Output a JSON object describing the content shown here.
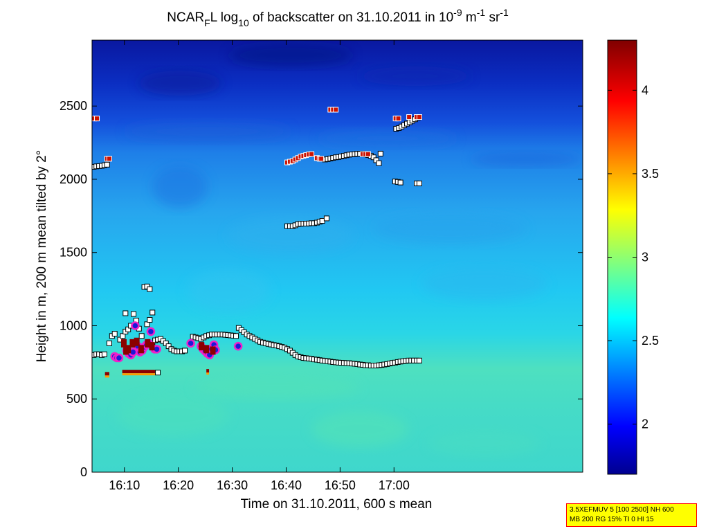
{
  "chart_data": {
    "type": "heatmap",
    "title": {
      "prefix": "NCAR",
      "sub_f": "F",
      "mid": "L log",
      "sub_10": "10",
      "rest": " of backscatter on 31.10.2011 in 10",
      "sup_exp": "-9",
      "unit_m": " m",
      "sup_m": "-1",
      "unit_sr": " sr",
      "sup_sr": "-1"
    },
    "xlabel": "Time on 31.10.2011, 600 s mean",
    "ylabel": "Height in m, 200 m mean tilted by 2°",
    "x_range_minutes": [
      964,
      1055
    ],
    "ylim": [
      0,
      2950
    ],
    "x_ticks": [
      {
        "label": "16:10",
        "minute": 970
      },
      {
        "label": "16:20",
        "minute": 980
      },
      {
        "label": "16:30",
        "minute": 990
      },
      {
        "label": "16:40",
        "minute": 1000
      },
      {
        "label": "16:50",
        "minute": 1010
      },
      {
        "label": "17:00",
        "minute": 1020
      }
    ],
    "y_ticks": [
      0,
      500,
      1000,
      1500,
      2000,
      2500
    ],
    "colorbar": {
      "range": [
        1.7,
        4.3
      ],
      "ticks": [
        "2",
        "2.5",
        "3",
        "3.5",
        "4"
      ],
      "tick_values": [
        2,
        2.5,
        3,
        3.5,
        4
      ],
      "colormap": "jet"
    },
    "marker_series": [
      {
        "name": "upper layer (white squares)",
        "style": "white-square",
        "points": [
          [
            964.3,
            2085
          ],
          [
            964.8,
            2088
          ],
          [
            965.3,
            2090
          ],
          [
            965.8,
            2092
          ],
          [
            966.3,
            2096
          ],
          [
            966.8,
            2100
          ],
          [
            1000.2,
            1680
          ],
          [
            1000.7,
            1680
          ],
          [
            1001.2,
            1680
          ],
          [
            1001.7,
            1686
          ],
          [
            1002.2,
            1694
          ],
          [
            1002.7,
            1696
          ],
          [
            1003.2,
            1697
          ],
          [
            1003.7,
            1697
          ],
          [
            1004.2,
            1698
          ],
          [
            1004.7,
            1700
          ],
          [
            1005.2,
            1700
          ],
          [
            1005.7,
            1704
          ],
          [
            1006.2,
            1710
          ],
          [
            1006.7,
            1716
          ],
          [
            1007.5,
            1733
          ],
          [
            1007.2,
            2135
          ],
          [
            1007.7,
            2138
          ],
          [
            1008.2,
            2142
          ],
          [
            1008.7,
            2146
          ],
          [
            1009.2,
            2150
          ],
          [
            1009.7,
            2152
          ],
          [
            1010.2,
            2156
          ],
          [
            1010.7,
            2160
          ],
          [
            1011.2,
            2164
          ],
          [
            1011.7,
            2168
          ],
          [
            1012.2,
            2170
          ],
          [
            1012.7,
            2172
          ],
          [
            1013.2,
            2174
          ],
          [
            1013.7,
            2174
          ],
          [
            1014.2,
            2174
          ],
          [
            1014.7,
            2170
          ],
          [
            1015.2,
            2166
          ],
          [
            1015.7,
            2160
          ],
          [
            1016.2,
            2150
          ],
          [
            1016.7,
            2130
          ],
          [
            1017.2,
            2110
          ],
          [
            1017.5,
            2175
          ],
          [
            1020.2,
            1985
          ],
          [
            1020.7,
            1982
          ],
          [
            1021.2,
            1978
          ],
          [
            1024.2,
            1972
          ],
          [
            1024.7,
            1972
          ],
          [
            1020.4,
            2345
          ],
          [
            1020.9,
            2350
          ],
          [
            1021.4,
            2360
          ],
          [
            1021.9,
            2370
          ],
          [
            1022.4,
            2380
          ],
          [
            1022.9,
            2390
          ],
          [
            1023.4,
            2400
          ],
          [
            1023.9,
            2410
          ],
          [
            1024.4,
            2420
          ],
          [
            973.7,
            1265
          ],
          [
            974.2,
            1268
          ],
          [
            974.7,
            1250
          ]
        ]
      },
      {
        "name": "cloud base (white squares)",
        "style": "white-square",
        "points": [
          [
            964.3,
            800
          ],
          [
            964.8,
            805
          ],
          [
            965.3,
            805
          ],
          [
            965.8,
            800
          ],
          [
            966.3,
            805
          ],
          [
            975.7,
            900
          ],
          [
            976.2,
            905
          ],
          [
            976.7,
            910
          ],
          [
            977.2,
            895
          ],
          [
            977.7,
            880
          ],
          [
            978.2,
            860
          ],
          [
            978.7,
            840
          ],
          [
            979.2,
            830
          ],
          [
            979.7,
            825
          ],
          [
            980.2,
            825
          ],
          [
            980.7,
            825
          ],
          [
            981.2,
            830
          ],
          [
            982.7,
            925
          ],
          [
            983.2,
            920
          ],
          [
            983.7,
            915
          ],
          [
            984.2,
            910
          ],
          [
            984.7,
            920
          ],
          [
            985.2,
            930
          ],
          [
            985.7,
            935
          ],
          [
            986.2,
            940
          ],
          [
            986.7,
            940
          ],
          [
            987.2,
            940
          ],
          [
            987.7,
            940
          ],
          [
            988.2,
            940
          ],
          [
            988.7,
            938
          ],
          [
            989.2,
            936
          ],
          [
            989.7,
            934
          ],
          [
            990.2,
            932
          ],
          [
            990.7,
            930
          ],
          [
            991.2,
            985
          ],
          [
            991.7,
            970
          ],
          [
            992.2,
            955
          ],
          [
            992.7,
            940
          ],
          [
            993.2,
            930
          ],
          [
            993.7,
            920
          ],
          [
            994.2,
            910
          ],
          [
            994.7,
            900
          ],
          [
            995.2,
            890
          ],
          [
            995.7,
            885
          ],
          [
            996.2,
            880
          ],
          [
            996.7,
            876
          ],
          [
            997.2,
            872
          ],
          [
            997.7,
            868
          ],
          [
            998.2,
            865
          ],
          [
            998.7,
            860
          ],
          [
            999.2,
            855
          ],
          [
            999.7,
            850
          ],
          [
            1000.2,
            840
          ],
          [
            1000.7,
            830
          ],
          [
            1001.2,
            815
          ],
          [
            1001.7,
            800
          ],
          [
            1002.2,
            790
          ],
          [
            1002.7,
            785
          ],
          [
            1003.2,
            780
          ],
          [
            1003.7,
            778
          ],
          [
            1004.2,
            776
          ],
          [
            1004.7,
            774
          ],
          [
            1005.2,
            770
          ],
          [
            1005.7,
            768
          ],
          [
            1006.2,
            765
          ],
          [
            1006.7,
            762
          ],
          [
            1007.2,
            760
          ],
          [
            1007.7,
            758
          ],
          [
            1008.2,
            755
          ],
          [
            1008.7,
            752
          ],
          [
            1009.2,
            750
          ],
          [
            1009.7,
            748
          ],
          [
            1010.2,
            747
          ],
          [
            1010.7,
            746
          ],
          [
            1011.2,
            745
          ],
          [
            1011.7,
            744
          ],
          [
            1012.2,
            742
          ],
          [
            1012.7,
            740
          ],
          [
            1013.2,
            738
          ],
          [
            1013.7,
            735
          ],
          [
            1014.2,
            733
          ],
          [
            1014.7,
            730
          ],
          [
            1015.2,
            730
          ],
          [
            1015.7,
            728
          ],
          [
            1016.2,
            728
          ],
          [
            1016.7,
            728
          ],
          [
            1017.2,
            730
          ],
          [
            1017.7,
            732
          ],
          [
            1018.2,
            735
          ],
          [
            1018.7,
            738
          ],
          [
            1019.2,
            742
          ],
          [
            1019.7,
            746
          ],
          [
            1020.2,
            748
          ],
          [
            1020.7,
            752
          ],
          [
            1021.2,
            755
          ],
          [
            1021.7,
            758
          ],
          [
            1022.2,
            760
          ],
          [
            1022.7,
            762
          ],
          [
            1023.2,
            762
          ],
          [
            1023.7,
            762
          ],
          [
            1024.2,
            762
          ],
          [
            1024.7,
            762
          ],
          [
            967.2,
            880
          ],
          [
            967.7,
            930
          ],
          [
            968.2,
            945
          ],
          [
            969.2,
            905
          ],
          [
            969.7,
            930
          ],
          [
            970.2,
            960
          ],
          [
            970.7,
            975
          ],
          [
            971.2,
            1000
          ],
          [
            971.7,
            1080
          ],
          [
            972.2,
            1035
          ],
          [
            972.7,
            980
          ],
          [
            973.2,
            930
          ],
          [
            974.2,
            1010
          ],
          [
            974.7,
            1040
          ],
          [
            975.2,
            1090
          ],
          [
            975.2,
            860
          ],
          [
            976.2,
            680
          ],
          [
            970.2,
            1085
          ]
        ]
      },
      {
        "name": "red markers (top layer)",
        "style": "red-square",
        "points": [
          [
            964.4,
            2415
          ],
          [
            964.9,
            2415
          ],
          [
            966.8,
            2140
          ],
          [
            967.2,
            2140
          ],
          [
            1000.2,
            2115
          ],
          [
            1000.7,
            2120
          ],
          [
            1001.2,
            2125
          ],
          [
            1001.7,
            2135
          ],
          [
            1002.2,
            2145
          ],
          [
            1002.7,
            2155
          ],
          [
            1003.2,
            2160
          ],
          [
            1003.7,
            2165
          ],
          [
            1004.2,
            2170
          ],
          [
            1004.7,
            2172
          ],
          [
            1005.7,
            2145
          ],
          [
            1006.2,
            2140
          ],
          [
            1006.5,
            2140
          ],
          [
            1008.2,
            2475
          ],
          [
            1008.7,
            2475
          ],
          [
            1009.2,
            2475
          ],
          [
            1014.2,
            2172
          ],
          [
            1014.7,
            2172
          ],
          [
            1015.2,
            2172
          ],
          [
            1020.3,
            2415
          ],
          [
            1020.8,
            2415
          ],
          [
            1022.8,
            2425
          ],
          [
            1024.2,
            2425
          ],
          [
            1024.7,
            2425
          ]
        ]
      },
      {
        "name": "blue/magenta circles (cloud)",
        "style": "blue-circle",
        "points": [
          [
            968.2,
            790
          ],
          [
            968.6,
            780
          ],
          [
            969.0,
            780
          ],
          [
            970.4,
            830
          ],
          [
            970.8,
            810
          ],
          [
            971.2,
            800
          ],
          [
            971.6,
            820
          ],
          [
            972.0,
            1000
          ],
          [
            972.5,
            860
          ],
          [
            972.9,
            820
          ],
          [
            973.3,
            830
          ],
          [
            973.7,
            855
          ],
          [
            974.1,
            870
          ],
          [
            974.5,
            880
          ],
          [
            974.9,
            960
          ],
          [
            975.6,
            840
          ],
          [
            976.0,
            840
          ],
          [
            982.3,
            880
          ],
          [
            984.2,
            860
          ],
          [
            984.6,
            840
          ],
          [
            985.0,
            825
          ],
          [
            985.4,
            810
          ],
          [
            985.8,
            800
          ],
          [
            986.2,
            840
          ],
          [
            986.6,
            870
          ],
          [
            986.9,
            835
          ],
          [
            991.1,
            860
          ]
        ]
      },
      {
        "name": "dark red/magenta filled cells",
        "style": "darkred-square",
        "points": [
          [
            969.9,
            880
          ],
          [
            970.3,
            830
          ],
          [
            970.7,
            840
          ],
          [
            971.5,
            880
          ],
          [
            972.3,
            890
          ],
          [
            973.1,
            840
          ],
          [
            974.3,
            880
          ],
          [
            975.1,
            860
          ],
          [
            984.3,
            860
          ],
          [
            985.2,
            840
          ],
          [
            986.4,
            830
          ]
        ]
      }
    ],
    "base_layer_bands_minutes_height": [
      {
        "from": 969.6,
        "to": 975.7,
        "height": 680,
        "desc": "dark red / orange band"
      },
      {
        "from": 966.4,
        "to": 967.2,
        "height": 665,
        "desc": "dark red patch"
      },
      {
        "from": 985.2,
        "to": 985.7,
        "height": 685,
        "desc": "dark red patch"
      }
    ]
  },
  "info_box": {
    "line1": "3.5XEFMUV 5 [100 2500] NH 600",
    "line2": "MB 200 RG 15% TI 0 HI 15"
  },
  "colors": {
    "box_bg": "#ffff00",
    "box_border": "#ff0000",
    "marker_red": "#cc1100",
    "marker_darkred": "#8b0000",
    "marker_circle": "#1a1ad8",
    "marker_circle_ring": "#f020c8"
  }
}
